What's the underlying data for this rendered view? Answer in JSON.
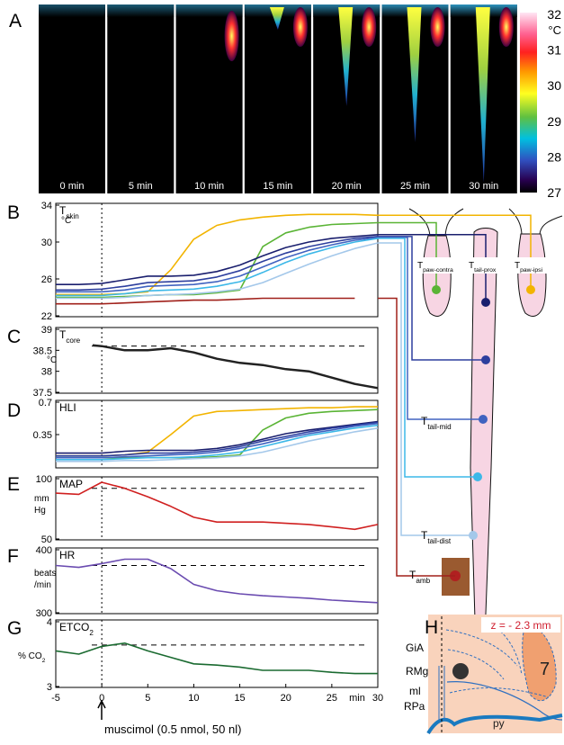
{
  "panel_labels": {
    "a": "A",
    "b": "B",
    "c": "C",
    "d": "D",
    "e": "E",
    "f": "F",
    "g": "G",
    "h": "H"
  },
  "thermal_images": {
    "frames": [
      "0 min",
      "5 min",
      "10 min",
      "15 min",
      "20 min",
      "25 min",
      "30 min"
    ],
    "colorbar": {
      "unit": "°C",
      "lim": [
        27,
        32
      ],
      "ticks": [
        27,
        28,
        29,
        30,
        31,
        32
      ]
    }
  },
  "annotation": {
    "text": "muscimol (0.5 nmol, 50 nl)",
    "x": 0
  },
  "chart_data": [
    {
      "type": "line",
      "title": "Tskin",
      "ylabel": [
        "°C"
      ],
      "xlim": [
        -5,
        30
      ],
      "ylim": [
        22,
        34
      ],
      "yticks": [
        22,
        26,
        30,
        34
      ],
      "x": [
        -5,
        -2.5,
        0,
        2.5,
        5,
        7.5,
        10,
        12.5,
        15,
        17.5,
        20,
        22.5,
        25,
        27.5,
        30
      ],
      "series": [
        {
          "name": "Tpaw-ipsi",
          "color": "#f2b400",
          "values": [
            24.3,
            24.3,
            24.3,
            24.4,
            24.6,
            27.0,
            30.3,
            31.8,
            32.4,
            32.7,
            32.9,
            33.0,
            33.0,
            33.0,
            32.9
          ]
        },
        {
          "name": "Tpaw-contra",
          "color": "#5ab435",
          "values": [
            24.0,
            24.0,
            24.0,
            24.1,
            24.2,
            24.3,
            24.3,
            24.5,
            24.8,
            29.5,
            31.0,
            31.6,
            31.9,
            32.0,
            32.1
          ]
        },
        {
          "name": "Ttail-prox",
          "color": "#1a1f6e",
          "values": [
            25.4,
            25.4,
            25.5,
            25.9,
            26.3,
            26.3,
            26.4,
            26.8,
            27.5,
            28.5,
            29.4,
            30.0,
            30.4,
            30.6,
            30.8
          ]
        },
        {
          "name": null,
          "color": "#2d3f9e",
          "values": [
            24.8,
            24.8,
            24.9,
            25.2,
            25.6,
            25.7,
            25.8,
            26.2,
            26.9,
            27.9,
            28.8,
            29.5,
            30.0,
            30.4,
            30.6
          ]
        },
        {
          "name": "Ttail-mid",
          "color": "#4063c0",
          "values": [
            24.6,
            24.6,
            24.6,
            24.8,
            25.2,
            25.3,
            25.4,
            25.7,
            26.3,
            27.3,
            28.3,
            29.1,
            29.7,
            30.2,
            30.5
          ]
        },
        {
          "name": null,
          "color": "#3cb8e8",
          "values": [
            24.2,
            24.2,
            24.2,
            24.4,
            24.7,
            24.8,
            24.9,
            25.2,
            25.7,
            26.7,
            27.8,
            28.7,
            29.4,
            30.0,
            30.4
          ]
        },
        {
          "name": "Ttail-dist",
          "color": "#a4c8ea",
          "values": [
            23.9,
            23.9,
            23.9,
            24.0,
            24.2,
            24.3,
            24.4,
            24.6,
            24.9,
            25.6,
            26.6,
            27.6,
            28.5,
            29.3,
            29.9
          ]
        },
        {
          "name": "Tamb",
          "color": "#a0201a",
          "values": [
            23.3,
            23.3,
            23.3,
            23.4,
            23.5,
            23.6,
            23.7,
            23.7,
            23.8,
            23.9,
            23.9,
            23.9,
            23.9,
            23.9,
            null
          ]
        }
      ]
    },
    {
      "type": "line",
      "title": "Tcore",
      "ylabel": [
        "°C"
      ],
      "xlim": [
        -5,
        30
      ],
      "ylim": [
        37.5,
        39
      ],
      "yticks": [
        37.5,
        38,
        38.5,
        39
      ],
      "baseline": 38.6,
      "x": [
        -1,
        0,
        2.5,
        5,
        7.5,
        10,
        12.5,
        15,
        17.5,
        20,
        22.5,
        25,
        27.5,
        30
      ],
      "series": [
        {
          "color": "#222222",
          "values": [
            38.62,
            38.6,
            38.5,
            38.5,
            38.55,
            38.45,
            38.3,
            38.2,
            38.15,
            38.05,
            38.0,
            37.85,
            37.7,
            37.6
          ]
        }
      ]
    },
    {
      "type": "line",
      "title": "HLI",
      "xlim": [
        -5,
        30
      ],
      "ylim": [
        0,
        0.7
      ],
      "yticks": [
        0.35,
        0.7
      ],
      "x": [
        -5,
        -2.5,
        0,
        2.5,
        5,
        7.5,
        10,
        12.5,
        15,
        17.5,
        20,
        22.5,
        25,
        27.5,
        30
      ],
      "series": [
        {
          "color": "#f2b400",
          "values": [
            0.12,
            0.12,
            0.12,
            0.13,
            0.16,
            0.35,
            0.55,
            0.6,
            0.61,
            0.62,
            0.63,
            0.64,
            0.64,
            0.65,
            0.65
          ]
        },
        {
          "color": "#5ab435",
          "values": [
            0.1,
            0.1,
            0.1,
            0.1,
            0.1,
            0.1,
            0.1,
            0.11,
            0.13,
            0.4,
            0.53,
            0.58,
            0.6,
            0.61,
            0.62
          ]
        },
        {
          "color": "#1a1f6e",
          "values": [
            0.15,
            0.15,
            0.15,
            0.17,
            0.18,
            0.18,
            0.18,
            0.2,
            0.24,
            0.3,
            0.36,
            0.4,
            0.43,
            0.46,
            0.49
          ]
        },
        {
          "color": "#2d3f9e",
          "values": [
            0.12,
            0.12,
            0.12,
            0.13,
            0.15,
            0.15,
            0.16,
            0.18,
            0.22,
            0.28,
            0.33,
            0.38,
            0.42,
            0.45,
            0.48
          ]
        },
        {
          "color": "#4063c0",
          "values": [
            0.1,
            0.1,
            0.1,
            0.11,
            0.12,
            0.13,
            0.14,
            0.16,
            0.2,
            0.25,
            0.31,
            0.36,
            0.4,
            0.44,
            0.47
          ]
        },
        {
          "color": "#3cb8e8",
          "values": [
            0.08,
            0.08,
            0.08,
            0.09,
            0.1,
            0.1,
            0.11,
            0.13,
            0.16,
            0.22,
            0.28,
            0.34,
            0.38,
            0.42,
            0.45
          ]
        },
        {
          "color": "#a4c8ea",
          "values": [
            0.06,
            0.06,
            0.06,
            0.07,
            0.07,
            0.08,
            0.09,
            0.1,
            0.12,
            0.16,
            0.22,
            0.28,
            0.33,
            0.38,
            0.42
          ]
        }
      ]
    },
    {
      "type": "line",
      "title": "MAP",
      "ylabel": [
        "mm",
        "Hg"
      ],
      "xlim": [
        -5,
        30
      ],
      "ylim": [
        50,
        100
      ],
      "yticks": [
        50,
        100
      ],
      "baseline": 92,
      "x": [
        -5,
        -2.5,
        0,
        2.5,
        5,
        7.5,
        10,
        12.5,
        15,
        17.5,
        20,
        22.5,
        25,
        27.5,
        30
      ],
      "series": [
        {
          "color": "#d02020",
          "values": [
            88,
            87,
            97,
            92,
            85,
            77,
            68,
            64,
            64,
            64,
            63,
            62,
            60,
            58,
            62
          ]
        }
      ]
    },
    {
      "type": "line",
      "title": "HR",
      "ylabel": [
        "beats",
        "/min"
      ],
      "xlim": [
        -5,
        30
      ],
      "ylim": [
        300,
        400
      ],
      "yticks": [
        300,
        400
      ],
      "baseline": 375,
      "x": [
        -5,
        -2.5,
        0,
        2.5,
        5,
        7.5,
        10,
        12.5,
        15,
        17.5,
        20,
        22.5,
        25,
        27.5,
        30
      ],
      "series": [
        {
          "color": "#6a4bb0",
          "values": [
            375,
            372,
            378,
            385,
            385,
            370,
            345,
            335,
            330,
            327,
            325,
            323,
            320,
            318,
            316
          ]
        }
      ]
    },
    {
      "type": "line",
      "title": "ETCO2",
      "ylabel": [
        "% CO2"
      ],
      "xlabel": "min",
      "xlim": [
        -5,
        30
      ],
      "xticks": [
        -5,
        0,
        5,
        10,
        15,
        20,
        25,
        30
      ],
      "ylim": [
        3,
        4
      ],
      "yticks": [
        3,
        4
      ],
      "baseline": 3.64,
      "x": [
        -5,
        -2.5,
        0,
        2.5,
        5,
        7.5,
        10,
        12.5,
        15,
        17.5,
        20,
        22.5,
        25,
        27.5,
        30
      ],
      "series": [
        {
          "color": "#1a6a30",
          "values": [
            3.55,
            3.5,
            3.62,
            3.67,
            3.55,
            3.45,
            3.35,
            3.33,
            3.3,
            3.25,
            3.25,
            3.25,
            3.22,
            3.2,
            3.2
          ]
        }
      ]
    }
  ],
  "section": {
    "level": "z = - 2.3 mm",
    "labels": {
      "gia": "GiA",
      "rmg": "RMg",
      "ml": "ml",
      "rpa": "RPa",
      "py": "py",
      "seven": "7"
    }
  }
}
